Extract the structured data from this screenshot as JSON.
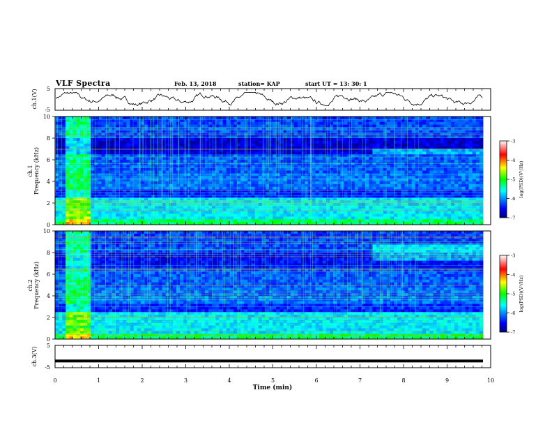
{
  "header": {
    "title": "VLF Spectra",
    "date": "Feb. 13, 2018",
    "station": "station= KAP",
    "start": "start  UT =   13: 30: 1"
  },
  "chart_data": [
    {
      "type": "line",
      "panel": "ch1-waveform",
      "ylabel": "ch.1(V)",
      "ylim": [
        -5,
        5
      ],
      "yticks": [
        "5",
        "-5"
      ],
      "xlim": [
        0,
        10
      ],
      "description_values": "noisy oscillating trace roughly between -3 and 3 V"
    },
    {
      "type": "heatmap",
      "panel": "ch1-spectrogram",
      "ylabel_top": "ch.1",
      "ylabel": "Frequency (kHz)",
      "ylim": [
        0,
        10
      ],
      "yticks": [
        "0",
        "2",
        "4",
        "6",
        "8",
        "10"
      ],
      "xlim": [
        0,
        10
      ],
      "colorbar": {
        "label": "log(PSD)(V²/Hz)",
        "range": [
          -7,
          -3
        ],
        "ticks": [
          "-3",
          "-4",
          "-5",
          "-6",
          "-7"
        ]
      }
    },
    {
      "type": "heatmap",
      "panel": "ch2-spectrogram",
      "ylabel_top": "ch.2",
      "ylabel": "Frequency (kHz)",
      "ylim": [
        0,
        10
      ],
      "yticks": [
        "0",
        "2",
        "4",
        "6",
        "8",
        "10"
      ],
      "xlim": [
        0,
        10
      ],
      "colorbar": {
        "label": "log(PSD)(V²/Hz)",
        "range": [
          -7,
          -3
        ],
        "ticks": [
          "-3",
          "-4",
          "-5",
          "-6",
          "-7"
        ]
      }
    },
    {
      "type": "line",
      "panel": "ch3-waveform",
      "ylabel": "ch.3(V)",
      "ylim": [
        -5,
        5
      ],
      "yticks": [
        "5",
        "-5"
      ],
      "xlim": [
        0,
        10
      ],
      "xlabel": "Time (min)",
      "xticks": [
        "0",
        "1",
        "2",
        "3",
        "4",
        "5",
        "6",
        "7",
        "8",
        "9",
        "10"
      ],
      "values": [
        -2,
        -2
      ]
    }
  ]
}
